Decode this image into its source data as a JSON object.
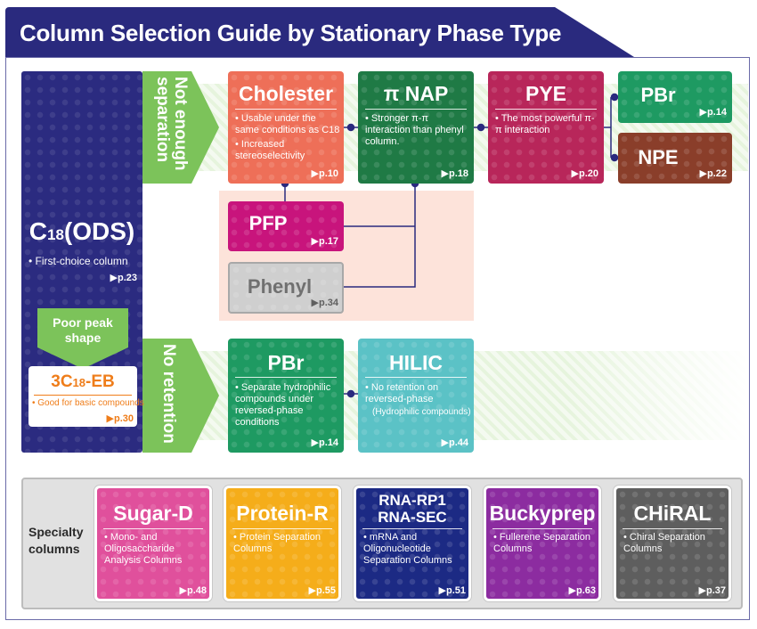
{
  "title": "Column Selection Guide by Stationary Phase Type",
  "c18": {
    "title_main": "C",
    "title_sub": "18",
    "title_rest": "(ODS)",
    "desc": "• First-choice column",
    "page": "▶p.23"
  },
  "labels": {
    "not_enough": "Not enough\nseparation",
    "no_retention": "No retention",
    "poor_peak": "Poor peak shape"
  },
  "eb": {
    "title_a": "3C",
    "title_sub": "18",
    "title_b": "-EB",
    "desc": "• Good for basic compounds",
    "page": "▶p.30"
  },
  "boxes": {
    "cholester": {
      "title": "Cholester",
      "desc1": "• Usable under the same conditions as C18",
      "desc2": "• Increased stereoselectivity",
      "page": "▶p.10"
    },
    "pinap": {
      "title": "π NAP",
      "desc": "• Stronger π-π interaction than phenyl column.",
      "page": "▶p.18"
    },
    "pye": {
      "title": "PYE",
      "desc": "• The most powerful π-π interaction",
      "page": "▶p.20"
    },
    "pbr_top": {
      "title": "PBr",
      "page": "▶p.14"
    },
    "npe": {
      "title": "NPE",
      "page": "▶p.22"
    },
    "pfp": {
      "title": "PFP",
      "page": "▶p.17"
    },
    "phenyl": {
      "title": "Phenyl",
      "page": "▶p.34"
    },
    "pbr_bot": {
      "title": "PBr",
      "desc": "• Separate hydrophilic compounds under reversed-phase conditions",
      "page": "▶p.14"
    },
    "hilic": {
      "title": "HILIC",
      "desc1": "• No retention on reversed-phase",
      "desc2": "(Hydrophilic compounds)",
      "page": "▶p.44"
    }
  },
  "specialty": {
    "label": "Specialty columns",
    "items": [
      {
        "title": "Sugar-D",
        "desc": "• Mono- and Oligosaccharide Analysis Columns",
        "page": "▶p.48"
      },
      {
        "title": "Protein-R",
        "desc": "• Protein Separation Columns",
        "page": "▶p.55"
      },
      {
        "title": "RNA-RP1",
        "title2": "RNA-SEC",
        "desc": "• mRNA and Oligonucleotide Separation Columns",
        "page": "▶p.51"
      },
      {
        "title": "Buckyprep",
        "desc": "• Fullerene Separation Columns",
        "page": "▶p.63"
      },
      {
        "title": "CHiRAL",
        "desc": "• Chiral Separation Columns",
        "page": "▶p.37"
      }
    ]
  },
  "colors": {
    "header": "#2a2a7e",
    "c18": "#2b2b80",
    "green_arrow": "#7cc35a",
    "cholester": "#ee6f58",
    "pinap": "#1f7a45",
    "pye": "#b8265a",
    "pbr": "#1e9a62",
    "npe": "#8a3e2a",
    "pfp": "#c8147c",
    "phenyl": "#cfcfcf",
    "hilic": "#5bc2c6",
    "eb": "#ef7d1a",
    "sugar": "#e0509c",
    "protein": "#f5ad1a",
    "rna": "#1c2a84",
    "bucky": "#8c2ca0",
    "chiral": "#5e5e5e"
  }
}
